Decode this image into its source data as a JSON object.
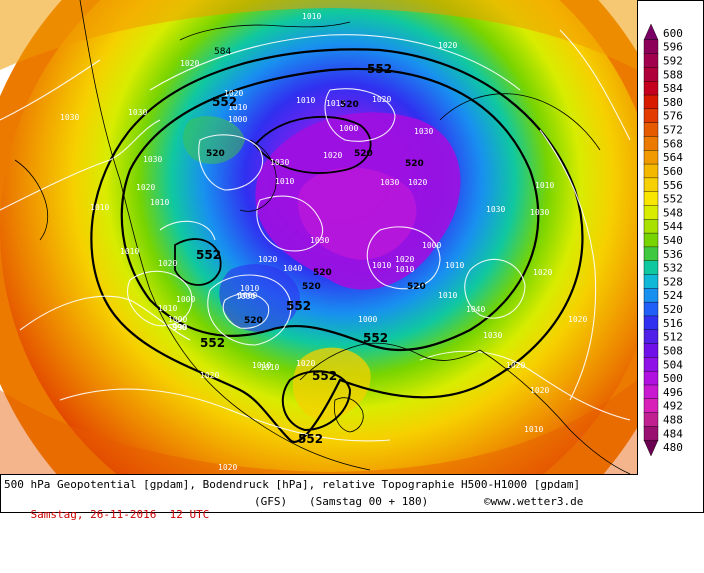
{
  "map": {
    "isobar_labels": [
      "1010",
      "1020",
      "1020",
      "1030",
      "1020",
      "1010",
      "1000",
      "1010",
      "1010",
      "1020",
      "1010",
      "1030",
      "1020",
      "1030",
      "1020",
      "1030",
      "1000",
      "1010",
      "1000",
      "990",
      "1010",
      "1030",
      "1040",
      "1000",
      "1010",
      "1010",
      "1020",
      "1000",
      "1010",
      "1040",
      "1030",
      "1020",
      "1020",
      "1010",
      "1020",
      "1000",
      "1010",
      "1020",
      "1030",
      "1030",
      "1010",
      "1020",
      "1010",
      "1020",
      "1030",
      "1020",
      "1020",
      "1010",
      "1020",
      "1010",
      "1030",
      "1010",
      "1020",
      "1000",
      "990",
      "1000",
      "1010"
    ],
    "geopotential_labels": [
      "552",
      "552",
      "552",
      "552",
      "520",
      "520",
      "520",
      "520",
      "520",
      "520",
      "520",
      "520",
      "552",
      "552",
      "552",
      "552",
      "584"
    ]
  },
  "legend": {
    "values": [
      "600",
      "596",
      "592",
      "588",
      "584",
      "580",
      "576",
      "572",
      "568",
      "564",
      "560",
      "556",
      "552",
      "548",
      "544",
      "540",
      "536",
      "532",
      "528",
      "524",
      "520",
      "516",
      "512",
      "508",
      "504",
      "500",
      "496",
      "492",
      "488",
      "484",
      "480"
    ],
    "colors": [
      "#7a0063",
      "#8c005a",
      "#a0004e",
      "#b0003c",
      "#c5001f",
      "#d81b00",
      "#e23a00",
      "#e65a00",
      "#ec7a00",
      "#f09a00",
      "#f4b800",
      "#f6d000",
      "#f8e600",
      "#d8ec00",
      "#a8e000",
      "#78d400",
      "#40c840",
      "#10c8a0",
      "#10b8d8",
      "#1890f0",
      "#2060f8",
      "#3030f0",
      "#5020e8",
      "#7010e8",
      "#9010e8",
      "#b010e0",
      "#c818d0",
      "#d820b8",
      "#c02090",
      "#9a1070",
      "#6c0050"
    ]
  },
  "caption": {
    "line1": "500 hPa Geopotential [gpdam], Bodendruck [hPa], relative Topographie H500-H1000 [gpdam]",
    "date": "Samstag, 26-11-2016  12 UTC",
    "model": "(GFS)",
    "run": "(Samstag 00 + 180)",
    "copyright": "©www.wetter3.de"
  }
}
